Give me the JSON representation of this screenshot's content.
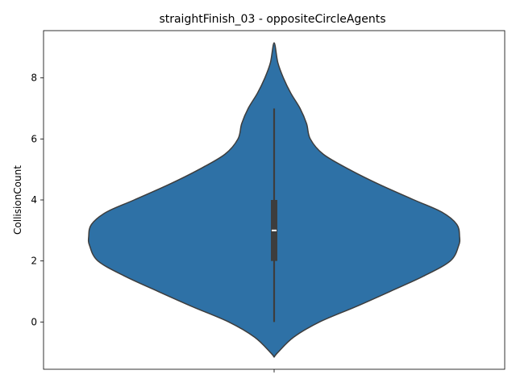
{
  "chart_data": {
    "type": "violin",
    "title": "straightFinish_03 - oppositeCircleAgents",
    "xlabel": "",
    "ylabel": "CollisionCount",
    "ylim": [
      -1.55,
      9.55
    ],
    "yticks": [
      0,
      2,
      4,
      6,
      8
    ],
    "grid": false,
    "legend": "none",
    "colors": {
      "violin_fill": "#2e71a6",
      "violin_edge": "#3d3d3d",
      "box": "#3d3d3d",
      "median": "#ffffff"
    },
    "violin": {
      "min": 0,
      "q1": 2,
      "median": 3,
      "q3": 4,
      "max": 7,
      "density_extent": [
        -1.15,
        9.15
      ],
      "profile": [
        {
          "y": -1.15,
          "w": 0.0
        },
        {
          "y": -1.0,
          "w": 0.02
        },
        {
          "y": -0.5,
          "w": 0.105
        },
        {
          "y": 0.0,
          "w": 0.245
        },
        {
          "y": 0.5,
          "w": 0.44
        },
        {
          "y": 1.0,
          "w": 0.625
        },
        {
          "y": 1.5,
          "w": 0.805
        },
        {
          "y": 2.0,
          "w": 0.95
        },
        {
          "y": 2.5,
          "w": 0.995
        },
        {
          "y": 2.8,
          "w": 1.0
        },
        {
          "y": 3.2,
          "w": 0.985
        },
        {
          "y": 3.6,
          "w": 0.905
        },
        {
          "y": 4.0,
          "w": 0.755
        },
        {
          "y": 4.5,
          "w": 0.57
        },
        {
          "y": 5.0,
          "w": 0.405
        },
        {
          "y": 5.5,
          "w": 0.265
        },
        {
          "y": 6.0,
          "w": 0.195
        },
        {
          "y": 6.5,
          "w": 0.175
        },
        {
          "y": 7.0,
          "w": 0.14
        },
        {
          "y": 7.5,
          "w": 0.09
        },
        {
          "y": 8.0,
          "w": 0.05
        },
        {
          "y": 8.5,
          "w": 0.02
        },
        {
          "y": 9.15,
          "w": 0.0
        }
      ]
    }
  }
}
